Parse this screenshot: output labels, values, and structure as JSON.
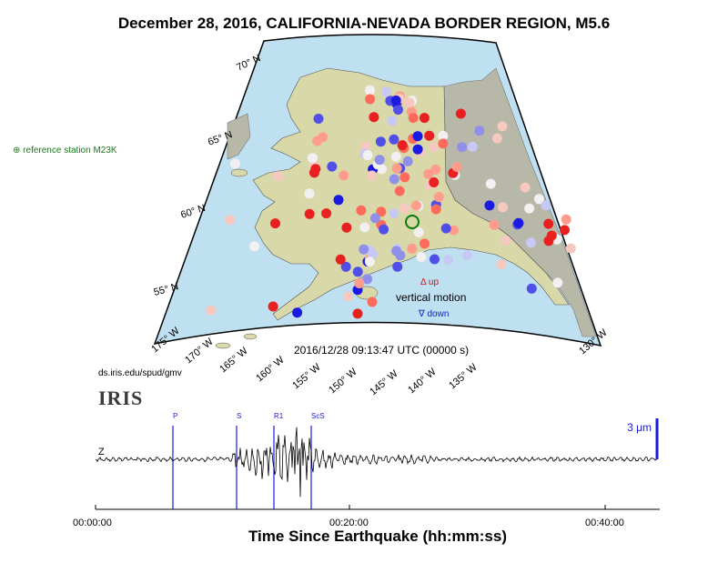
{
  "title": "December 28, 2016, CALIFORNIA-NEVADA BORDER REGION, M5.6",
  "reference_station": "reference station M23K",
  "timestamp": "2016/12/28 09:13:47 UTC (00000 s)",
  "source_url": "ds.iris.edu/spud/gmv",
  "logo_text": "IRIS",
  "legend": {
    "up": "Δ up",
    "vertical_motion": "vertical motion",
    "down": "∇ down"
  },
  "map": {
    "lat_labels": [
      "70° N",
      "65° N",
      "60° N",
      "55° N"
    ],
    "lon_labels": [
      "175° W",
      "170° W",
      "165° W",
      "160° W",
      "155° W",
      "150° W",
      "145° W",
      "140° W",
      "135° W",
      "130° W"
    ],
    "colors": {
      "ocean": "#bfe0f0",
      "land": "#d8d8a8",
      "canada": "#b8b8a8",
      "up": "#e82020",
      "down": "#1a1ae0"
    }
  },
  "seismogram": {
    "component": "Z",
    "scale_label": "3 μm",
    "phases": [
      "P",
      "S",
      "R1",
      "ScS"
    ],
    "time_ticks": [
      "00:00:00",
      "00:20:00",
      "00:40:00"
    ],
    "axis_title": "Time Since Earthquake (hh:mm:ss)"
  }
}
